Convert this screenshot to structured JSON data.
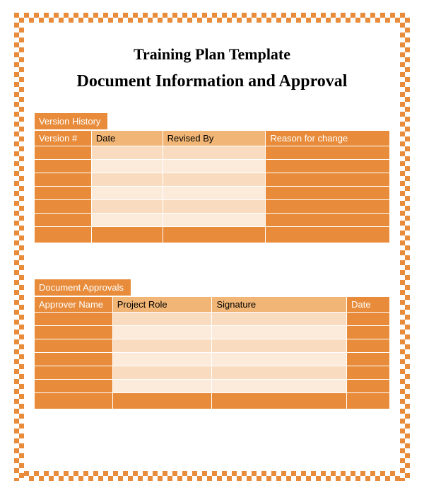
{
  "colors": {
    "accent": "#e88c3b",
    "accent_border": "#e88c3b",
    "header_mid_bg": "#f1b676",
    "row_light": "#f9dcbf",
    "row_lighter": "#fceadb",
    "white": "#ffffff",
    "black": "#000000"
  },
  "title_main": "Training Plan Template",
  "title_sub": "Document Information and Approval",
  "version_history": {
    "tab_label": "Version History",
    "columns": [
      {
        "label": "Version #",
        "width": "16%",
        "style": "accent"
      },
      {
        "label": "Date",
        "width": "20%",
        "style": "mid"
      },
      {
        "label": "Revised By",
        "width": "29%",
        "style": "mid"
      },
      {
        "label": "Reason for change",
        "width": "35%",
        "style": "accent"
      }
    ],
    "row_count": 6,
    "footer_row": true,
    "row_pattern": [
      [
        "accent",
        "light",
        "light",
        "accent"
      ],
      [
        "accent",
        "lighter",
        "lighter",
        "accent"
      ],
      [
        "accent",
        "light",
        "light",
        "accent"
      ],
      [
        "accent",
        "lighter",
        "lighter",
        "accent"
      ],
      [
        "accent",
        "light",
        "light",
        "accent"
      ],
      [
        "accent",
        "lighter",
        "lighter",
        "accent"
      ]
    ]
  },
  "document_approvals": {
    "tab_label": "Document Approvals",
    "columns": [
      {
        "label": "Approver Name",
        "width": "22%",
        "style": "accent"
      },
      {
        "label": "Project Role",
        "width": "28%",
        "style": "mid"
      },
      {
        "label": "Signature",
        "width": "38%",
        "style": "mid"
      },
      {
        "label": "Date",
        "width": "12%",
        "style": "accent"
      }
    ],
    "row_count": 6,
    "footer_row": true,
    "row_pattern": [
      [
        "accent",
        "light",
        "light",
        "accent"
      ],
      [
        "accent",
        "lighter",
        "lighter",
        "accent"
      ],
      [
        "accent",
        "light",
        "light",
        "accent"
      ],
      [
        "accent",
        "lighter",
        "lighter",
        "accent"
      ],
      [
        "accent",
        "light",
        "light",
        "accent"
      ],
      [
        "accent",
        "lighter",
        "lighter",
        "accent"
      ]
    ]
  }
}
